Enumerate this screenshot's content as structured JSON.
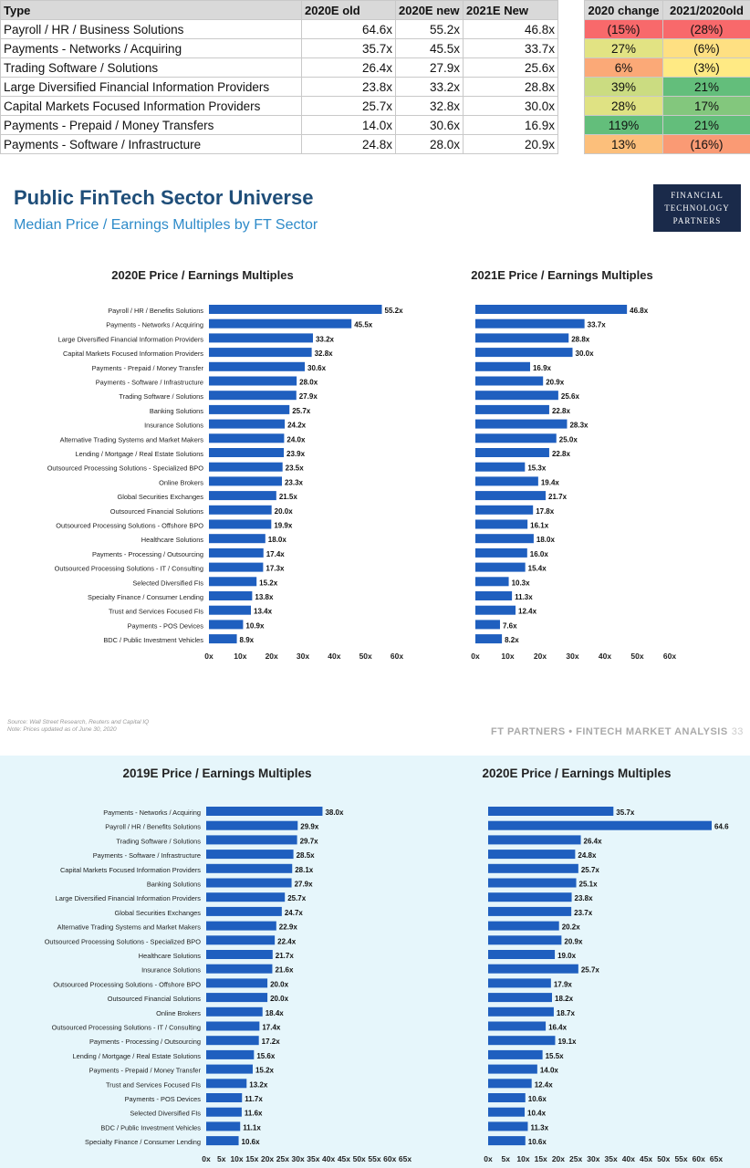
{
  "table": {
    "headers": [
      "Type",
      "2020E old",
      "2020E new",
      "2021E New",
      "2020 change",
      "2021/2020old"
    ],
    "rows": [
      {
        "type": "Payroll / HR / Business Solutions",
        "old": "64.6x",
        "new": "55.2x",
        "e2021": "46.8x",
        "chg": "(15%)",
        "ratio": "(28%)",
        "chg_color": "#f8696b",
        "ratio_color": "#f8696b"
      },
      {
        "type": "Payments - Networks / Acquiring",
        "old": "35.7x",
        "new": "45.5x",
        "e2021": "33.7x",
        "chg": "27%",
        "ratio": "(6%)",
        "chg_color": "#e2e383",
        "ratio_color": "#fee082"
      },
      {
        "type": "Trading Software / Solutions",
        "old": "26.4x",
        "new": "27.9x",
        "e2021": "25.6x",
        "chg": "6%",
        "ratio": "(3%)",
        "chg_color": "#fba977",
        "ratio_color": "#ffea84"
      },
      {
        "type": "Large Diversified Financial Information Providers",
        "old": "23.8x",
        "new": "33.2x",
        "e2021": "28.8x",
        "chg": "39%",
        "ratio": "21%",
        "chg_color": "#cbdc81",
        "ratio_color": "#63be7b"
      },
      {
        "type": "Capital Markets Focused Information Providers",
        "old": "25.7x",
        "new": "32.8x",
        "e2021": "30.0x",
        "chg": "28%",
        "ratio": "17%",
        "chg_color": "#dfe283",
        "ratio_color": "#83c77d"
      },
      {
        "type": "Payments - Prepaid / Money Transfers",
        "old": "14.0x",
        "new": "30.6x",
        "e2021": "16.9x",
        "chg": "119%",
        "ratio": "21%",
        "chg_color": "#63be7b",
        "ratio_color": "#63be7b"
      },
      {
        "type": "Payments - Software / Infrastructure",
        "old": "24.8x",
        "new": "28.0x",
        "e2021": "20.9x",
        "chg": "13%",
        "ratio": "(16%)",
        "chg_color": "#fcbf7b",
        "ratio_color": "#fa9a74"
      }
    ]
  },
  "slide": {
    "title": "Public FinTech Sector Universe",
    "subtitle": "Median Price / Earnings Multiples by FT Sector",
    "logo": [
      "FINANCIAL",
      "TECHNOLOGY",
      "PARTNERS"
    ],
    "source_line1": "Source: Wall Street Research, Reuters and Capital IQ",
    "source_line2": "Note: Prices updated as of June 30, 2020",
    "footer": "FT PARTNERS • FINTECH MARKET ANALYSIS",
    "page": "33"
  },
  "chart_data": [
    {
      "type": "bar",
      "orientation": "horizontal",
      "title": "2020E Price / Earnings Multiples",
      "categories": [
        "Payroll / HR / Benefits Solutions",
        "Payments - Networks / Acquiring",
        "Large Diversified Financial Information Providers",
        "Capital Markets Focused Information Providers",
        "Payments - Prepaid / Money Transfer",
        "Payments - Software / Infrastructure",
        "Trading Software / Solutions",
        "Banking Solutions",
        "Insurance Solutions",
        "Alternative Trading Systems and Market Makers",
        "Lending / Mortgage / Real Estate Solutions",
        "Outsourced Processing Solutions - Specialized BPO",
        "Online Brokers",
        "Global Securities Exchanges",
        "Outsourced Financial Solutions",
        "Outsourced Processing Solutions - Offshore BPO",
        "Healthcare Solutions",
        "Payments - Processing / Outsourcing",
        "Outsourced Processing Solutions - IT / Consulting",
        "Selected Diversified FIs",
        "Specialty Finance / Consumer Lending",
        "Trust and Services Focused FIs",
        "Payments - POS Devices",
        "BDC / Public Investment Vehicles"
      ],
      "values": [
        55.2,
        45.5,
        33.2,
        32.8,
        30.6,
        28.0,
        27.9,
        25.7,
        24.2,
        24.0,
        23.9,
        23.5,
        23.3,
        21.5,
        20.0,
        19.9,
        18.0,
        17.4,
        17.3,
        15.2,
        13.8,
        13.4,
        10.9,
        8.9
      ],
      "labels": [
        "55.2x",
        "45.5x",
        "33.2x",
        "32.8x",
        "30.6x",
        "28.0x",
        "27.9x",
        "25.7x",
        "24.2x",
        "24.0x",
        "23.9x",
        "23.5x",
        "23.3x",
        "21.5x",
        "20.0x",
        "19.9x",
        "18.0x",
        "17.4x",
        "17.3x",
        "15.2x",
        "13.8x",
        "13.4x",
        "10.9x",
        "8.9x"
      ],
      "xticks": [
        "0x",
        "10x",
        "20x",
        "30x",
        "40x",
        "50x",
        "60x"
      ],
      "xlim": [
        0,
        60
      ],
      "color": "#1f5fbf"
    },
    {
      "type": "bar",
      "orientation": "horizontal",
      "title": "2021E Price / Earnings Multiples",
      "values": [
        46.8,
        33.7,
        28.8,
        30.0,
        16.9,
        20.9,
        25.6,
        22.8,
        28.3,
        25.0,
        22.8,
        15.3,
        19.4,
        21.7,
        17.8,
        16.1,
        18.0,
        16.0,
        15.4,
        10.3,
        11.3,
        12.4,
        7.6,
        8.2
      ],
      "labels": [
        "46.8x",
        "33.7x",
        "28.8x",
        "30.0x",
        "16.9x",
        "20.9x",
        "25.6x",
        "22.8x",
        "28.3x",
        "25.0x",
        "22.8x",
        "15.3x",
        "19.4x",
        "21.7x",
        "17.8x",
        "16.1x",
        "18.0x",
        "16.0x",
        "15.4x",
        "10.3x",
        "11.3x",
        "12.4x",
        "7.6x",
        "8.2x"
      ],
      "xticks": [
        "0x",
        "10x",
        "20x",
        "30x",
        "40x",
        "50x",
        "60x"
      ],
      "xlim": [
        0,
        60
      ],
      "color": "#1f5fbf"
    },
    {
      "type": "bar",
      "orientation": "horizontal",
      "title": "2019E Price / Earnings Multiples",
      "categories": [
        "Payments - Networks / Acquiring",
        "Payroll / HR / Benefits Solutions",
        "Trading Software / Solutions",
        "Payments - Software / Infrastructure",
        "Capital Markets Focused Information Providers",
        "Banking Solutions",
        "Large Diversified Financial Information Providers",
        "Global Securities Exchanges",
        "Alternative Trading Systems and Market Makers",
        "Outsourced Processing Solutions - Specialized BPO",
        "Healthcare Solutions",
        "Insurance Solutions",
        "Outsourced Processing Solutions - Offshore BPO",
        "Outsourced Financial Solutions",
        "Online Brokers",
        "Outsourced Processing Solutions - IT / Consulting",
        "Payments - Processing / Outsourcing",
        "Lending / Mortgage / Real Estate Solutions",
        "Payments - Prepaid / Money Transfer",
        "Trust and Services Focused FIs",
        "Payments - POS Devices",
        "Selected Diversified FIs",
        "BDC / Public Investment Vehicles",
        "Specialty Finance / Consumer Lending"
      ],
      "values": [
        38.0,
        29.9,
        29.7,
        28.5,
        28.1,
        27.9,
        25.7,
        24.7,
        22.9,
        22.4,
        21.7,
        21.6,
        20.0,
        20.0,
        18.4,
        17.4,
        17.2,
        15.6,
        15.2,
        13.2,
        11.7,
        11.6,
        11.1,
        10.6
      ],
      "labels": [
        "38.0x",
        "29.9x",
        "29.7x",
        "28.5x",
        "28.1x",
        "27.9x",
        "25.7x",
        "24.7x",
        "22.9x",
        "22.4x",
        "21.7x",
        "21.6x",
        "20.0x",
        "20.0x",
        "18.4x",
        "17.4x",
        "17.2x",
        "15.6x",
        "15.2x",
        "13.2x",
        "11.7x",
        "11.6x",
        "11.1x",
        "10.6x"
      ],
      "xticks": [
        "0x",
        "5x",
        "10x",
        "15x",
        "20x",
        "25x",
        "30x",
        "35x",
        "40x",
        "45x",
        "50x",
        "55x",
        "60x",
        "65x"
      ],
      "xlim": [
        0,
        65
      ],
      "color": "#1f5fbf"
    },
    {
      "type": "bar",
      "orientation": "horizontal",
      "title": "2020E Price / Earnings Multiples",
      "values": [
        35.7,
        64.6,
        26.4,
        24.8,
        25.7,
        25.1,
        23.8,
        23.7,
        20.2,
        20.9,
        19.0,
        25.7,
        17.9,
        18.2,
        18.7,
        16.4,
        19.1,
        15.5,
        14.0,
        12.4,
        10.6,
        10.4,
        11.3,
        10.6
      ],
      "labels": [
        "35.7x",
        "64.6",
        "26.4x",
        "24.8x",
        "25.7x",
        "25.1x",
        "23.8x",
        "23.7x",
        "20.2x",
        "20.9x",
        "19.0x",
        "25.7x",
        "17.9x",
        "18.2x",
        "18.7x",
        "16.4x",
        "19.1x",
        "15.5x",
        "14.0x",
        "12.4x",
        "10.6x",
        "10.4x",
        "11.3x",
        "10.6x"
      ],
      "xticks": [
        "0x",
        "5x",
        "10x",
        "15x",
        "20x",
        "25x",
        "30x",
        "35x",
        "40x",
        "45x",
        "50x",
        "55x",
        "60x",
        "65x"
      ],
      "xlim": [
        0,
        65
      ],
      "color": "#1f5fbf"
    }
  ]
}
